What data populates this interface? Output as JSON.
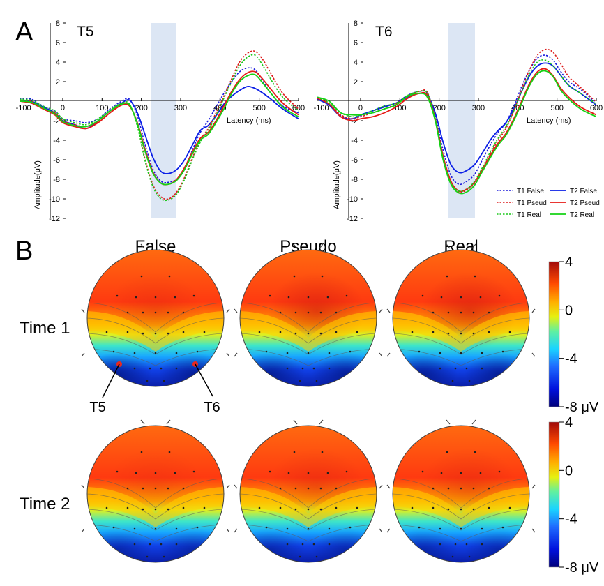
{
  "panel_a": {
    "letter": "A"
  },
  "panel_b": {
    "letter": "B",
    "columns": [
      "False",
      "Pseudo",
      "Real"
    ],
    "rows": [
      "Time 1",
      "Time 2"
    ],
    "markers": [
      "T5",
      "T6"
    ],
    "colorbar": {
      "ticks": [
        "4",
        "0",
        "-4",
        "-8 μV"
      ],
      "range": [
        -8,
        4
      ]
    },
    "colors": {
      "red": "#c81e14",
      "orange": "#ff7a00",
      "yellow": "#f0f000",
      "cyan": "#1ad4ff",
      "blue": "#1e3cff",
      "navy": "#001a6e",
      "marker": "#e8281e"
    }
  },
  "chart_data": [
    {
      "type": "line",
      "title": "T5",
      "xlabel": "Latency (ms)",
      "ylabel": "Amplitude(μV)",
      "xlim": [
        -110,
        600
      ],
      "ylim": [
        -12,
        8
      ],
      "xticks": [
        "-100",
        "0",
        "100",
        "200",
        "300",
        "400",
        "500",
        "600"
      ],
      "yticks": [
        "8",
        "6",
        "4",
        "2",
        "-2",
        "-4",
        "-6",
        "-8",
        "-10",
        "-12"
      ],
      "highlight": [
        235,
        300
      ],
      "legend": "bottom-right",
      "x": [
        -110,
        -80,
        -50,
        -20,
        0,
        30,
        60,
        90,
        120,
        150,
        170,
        190,
        210,
        230,
        250,
        270,
        290,
        310,
        330,
        350,
        370,
        390,
        410,
        430,
        450,
        470,
        490,
        510,
        530,
        560,
        600
      ],
      "series": [
        {
          "name": "T1 False",
          "color": "#1a1adc",
          "dash": true,
          "values": [
            0.3,
            0.2,
            -0.5,
            -1.0,
            -1.8,
            -2.0,
            -2.2,
            -1.8,
            -0.8,
            0,
            0.2,
            -1.5,
            -4.5,
            -7.0,
            -8.2,
            -8.3,
            -8.0,
            -7.0,
            -5.0,
            -3.2,
            -2.0,
            -0.6,
            0.8,
            2.0,
            3.0,
            3.4,
            3.2,
            2.0,
            0.8,
            -0.5,
            -1.2
          ]
        },
        {
          "name": "T2 False",
          "color": "#0a1ee6",
          "dash": false,
          "values": [
            0.1,
            0.0,
            -0.6,
            -1.2,
            -2.0,
            -2.4,
            -2.8,
            -2.0,
            -1.0,
            -0.2,
            0.1,
            -1.2,
            -3.5,
            -5.8,
            -7.2,
            -7.4,
            -7.0,
            -6.0,
            -4.5,
            -3.0,
            -2.5,
            -1.5,
            -0.3,
            0.5,
            1.1,
            1.5,
            1.3,
            0.8,
            0.2,
            -0.8,
            -1.8
          ]
        },
        {
          "name": "T1 Pseud",
          "color": "#dc1a1a",
          "dash": true,
          "values": [
            0.1,
            0.0,
            -0.7,
            -1.2,
            -2.0,
            -2.4,
            -2.6,
            -2.1,
            -1.2,
            -0.3,
            -0.4,
            -2.5,
            -6.0,
            -8.6,
            -9.8,
            -10.0,
            -9.3,
            -7.8,
            -5.8,
            -4.0,
            -2.8,
            -1.2,
            0.5,
            2.3,
            4.0,
            4.9,
            5.1,
            4.2,
            2.8,
            0.8,
            -0.8
          ]
        },
        {
          "name": "T2 Pseud",
          "color": "#e61a14",
          "dash": false,
          "values": [
            0.0,
            -0.2,
            -0.8,
            -1.4,
            -2.2,
            -2.6,
            -2.8,
            -2.2,
            -1.2,
            -0.4,
            -0.5,
            -2.2,
            -5.0,
            -7.3,
            -8.4,
            -8.5,
            -8.0,
            -6.8,
            -5.2,
            -3.8,
            -3.2,
            -2.0,
            -0.5,
            1.0,
            2.2,
            2.9,
            3.0,
            2.2,
            1.2,
            -0.2,
            -1.4
          ]
        },
        {
          "name": "T1 Real",
          "color": "#1ac81a",
          "dash": true,
          "values": [
            0.2,
            0.1,
            -0.5,
            -1.0,
            -1.8,
            -2.2,
            -2.4,
            -1.8,
            -0.9,
            -0.2,
            -0.3,
            -2.6,
            -6.2,
            -8.8,
            -10.0,
            -10.1,
            -9.5,
            -8.0,
            -6.0,
            -4.2,
            -3.0,
            -1.5,
            0.3,
            2.0,
            3.6,
            4.5,
            4.7,
            3.6,
            2.2,
            0.4,
            -1.0
          ]
        },
        {
          "name": "T2 Real",
          "color": "#14d214",
          "dash": false,
          "values": [
            0.0,
            -0.1,
            -0.7,
            -1.3,
            -2.1,
            -2.5,
            -2.6,
            -2.0,
            -1.0,
            -0.3,
            -0.4,
            -2.3,
            -5.2,
            -7.4,
            -8.4,
            -8.5,
            -8.1,
            -7.0,
            -5.4,
            -4.0,
            -3.4,
            -2.2,
            -0.8,
            0.8,
            2.0,
            2.6,
            2.7,
            1.8,
            0.8,
            -0.6,
            -1.6
          ]
        }
      ]
    },
    {
      "type": "line",
      "title": "T6",
      "xlabel": "Latency (ms)",
      "ylabel": "Amplitude(μV)",
      "xlim": [
        -110,
        600
      ],
      "ylim": [
        -12,
        8
      ],
      "xticks": [
        "-100",
        "0",
        "100",
        "200",
        "300",
        "400",
        "500",
        "600"
      ],
      "yticks": [
        "8",
        "6",
        "4",
        "2",
        "-2",
        "-4",
        "-6",
        "-8",
        "-10",
        "-12"
      ],
      "highlight": [
        235,
        300
      ],
      "legend": "bottom-right",
      "x": [
        -110,
        -80,
        -50,
        -20,
        0,
        30,
        60,
        90,
        120,
        150,
        170,
        190,
        210,
        230,
        250,
        270,
        290,
        310,
        330,
        350,
        370,
        390,
        410,
        430,
        450,
        470,
        490,
        510,
        530,
        560,
        600
      ],
      "series": [
        {
          "name": "T1 False",
          "color": "#1a1adc",
          "dash": true,
          "values": [
            0.3,
            -0.3,
            -1.5,
            -1.8,
            -1.5,
            -1.0,
            -0.5,
            -0.2,
            0.6,
            1.0,
            0.8,
            -1.5,
            -5.0,
            -7.6,
            -8.5,
            -8.2,
            -7.5,
            -6.0,
            -4.5,
            -3.2,
            -2.2,
            -0.5,
            1.5,
            3.2,
            4.4,
            4.7,
            4.2,
            3.0,
            2.0,
            1.2,
            -0.2
          ]
        },
        {
          "name": "T2 False",
          "color": "#0a1ee6",
          "dash": false,
          "values": [
            0.2,
            -0.4,
            -1.6,
            -1.8,
            -1.4,
            -1.0,
            -0.6,
            -0.2,
            0.4,
            0.8,
            0.6,
            -1.2,
            -4.2,
            -6.5,
            -7.3,
            -7.1,
            -6.5,
            -5.3,
            -4.0,
            -3.0,
            -2.2,
            -0.8,
            1.0,
            2.6,
            3.6,
            3.9,
            3.6,
            2.6,
            1.6,
            0.8,
            -0.4
          ]
        },
        {
          "name": "T1 Pseud",
          "color": "#dc1a1a",
          "dash": true,
          "values": [
            0.4,
            -0.2,
            -1.4,
            -1.8,
            -1.6,
            -1.2,
            -0.8,
            -0.3,
            0.5,
            1.0,
            0.9,
            -1.8,
            -5.8,
            -8.4,
            -9.3,
            -9.1,
            -8.4,
            -7.0,
            -5.4,
            -4.0,
            -2.8,
            -1.0,
            1.2,
            3.2,
            4.7,
            5.3,
            5.0,
            3.8,
            2.5,
            1.4,
            -0.1
          ]
        },
        {
          "name": "T2 Pseud",
          "color": "#e61a14",
          "dash": false,
          "values": [
            0.3,
            -0.3,
            -1.6,
            -2.0,
            -1.8,
            -1.6,
            -1.2,
            -0.6,
            0.3,
            0.8,
            0.6,
            -1.8,
            -5.6,
            -8.2,
            -9.2,
            -9.0,
            -8.3,
            -7.0,
            -5.6,
            -4.3,
            -3.3,
            -1.8,
            0.0,
            1.8,
            3.0,
            3.3,
            2.6,
            1.3,
            0.4,
            -0.6,
            -1.4
          ]
        },
        {
          "name": "T1 Real",
          "color": "#1ac81a",
          "dash": true,
          "values": [
            0.4,
            -0.2,
            -1.2,
            -1.6,
            -1.4,
            -1.0,
            -0.5,
            -0.2,
            0.6,
            1.0,
            0.8,
            -1.8,
            -5.8,
            -8.4,
            -9.2,
            -9.0,
            -8.2,
            -6.8,
            -5.2,
            -3.8,
            -2.6,
            -1.0,
            1.0,
            2.8,
            4.0,
            4.2,
            3.6,
            2.6,
            1.6,
            0.8,
            -0.3
          ]
        },
        {
          "name": "T2 Real",
          "color": "#14d214",
          "dash": false,
          "values": [
            0.4,
            0.0,
            -1.2,
            -1.4,
            -1.4,
            -1.2,
            -0.8,
            -0.4,
            0.5,
            0.8,
            0.4,
            -2.0,
            -6.0,
            -8.5,
            -9.4,
            -9.3,
            -8.6,
            -7.2,
            -5.8,
            -4.5,
            -3.5,
            -2.0,
            -0.2,
            1.6,
            2.8,
            3.1,
            2.5,
            1.1,
            0.2,
            -0.8,
            -1.6
          ]
        }
      ]
    }
  ]
}
